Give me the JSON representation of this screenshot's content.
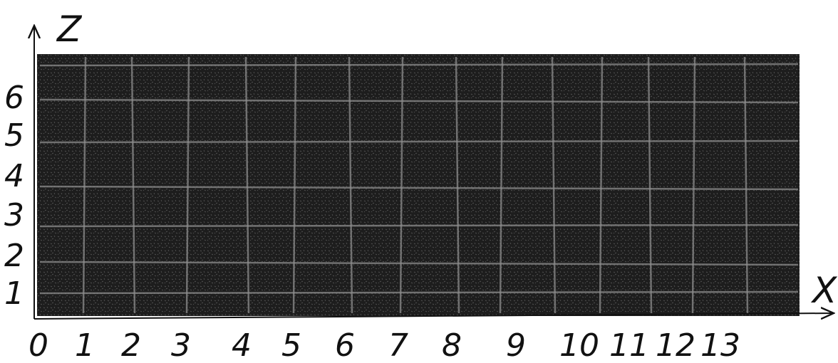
{
  "axes": {
    "x_label": "X",
    "z_label": "Z",
    "x_ticks": [
      "0",
      "1",
      "2",
      "3",
      "4",
      "5",
      "6",
      "7",
      "8",
      "9",
      "10",
      "11",
      "12",
      "13"
    ],
    "z_ticks": [
      "1",
      "2",
      "3",
      "4",
      "5",
      "6"
    ]
  },
  "colors": {
    "background": "#ffffff",
    "specimen": "#1b1b1b",
    "grid_line": "#8c8c8c",
    "ink": "#111111"
  }
}
